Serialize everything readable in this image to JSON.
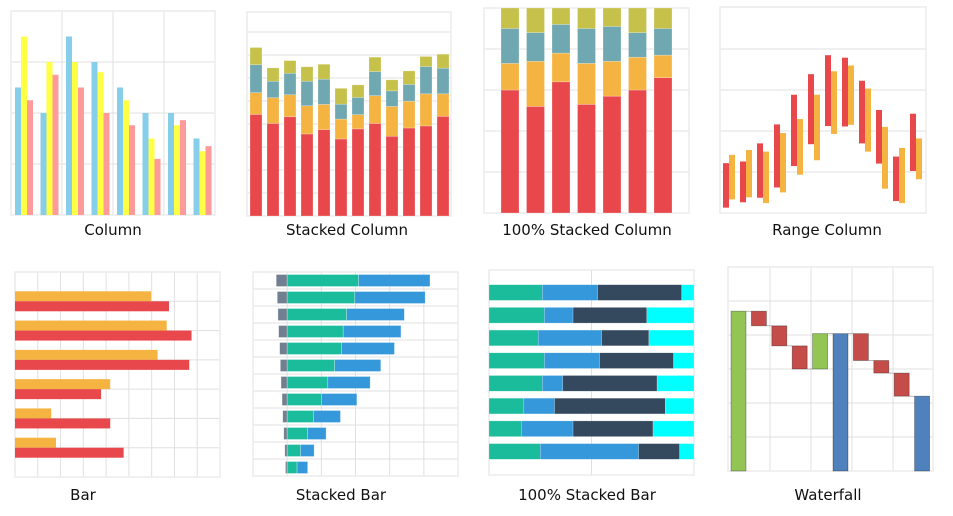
{
  "tiles": [
    {
      "label": "Column",
      "type": "column",
      "ylim": [
        0,
        4
      ],
      "series": [
        {
          "color": "#87ceeb",
          "values": [
            2.5,
            2.0,
            3.5,
            3.0,
            2.5,
            2.0,
            2.0,
            1.5
          ]
        },
        {
          "color": "#ffff44",
          "values": [
            3.5,
            3.0,
            3.0,
            2.8,
            2.25,
            1.5,
            1.76,
            1.25
          ]
        },
        {
          "color": "#ff9a9a",
          "values": [
            2.25,
            2.75,
            2.5,
            2.0,
            1.76,
            1.1,
            1.86,
            1.35
          ]
        }
      ]
    },
    {
      "label": "Stacked Column",
      "type": "stacked_column",
      "ylim": [
        0,
        8.9
      ],
      "series": [
        {
          "color": "#e8474b",
          "values": [
            4.43,
            4.04,
            4.33,
            3.58,
            3.77,
            3.36,
            3.8,
            4.04,
            3.48,
            3.84,
            3.93,
            4.35
          ]
        },
        {
          "color": "#f5b342",
          "values": [
            0.95,
            1.12,
            0.96,
            1.23,
            1.1,
            0.87,
            0.62,
            1.21,
            1.3,
            1.17,
            1.4,
            0.98
          ]
        },
        {
          "color": "#6fa8b0",
          "values": [
            1.22,
            0.72,
            0.94,
            1.07,
            1.1,
            0.65,
            0.75,
            1.05,
            0.68,
            0.73,
            1.19,
            1.12
          ]
        },
        {
          "color": "#c5c14a",
          "values": [
            0.75,
            0.58,
            0.55,
            0.63,
            0.65,
            0.69,
            0.55,
            0.63,
            0.48,
            0.59,
            0.44,
            0.61
          ]
        }
      ]
    },
    {
      "label": "100% Stacked Column",
      "type": "percent_column",
      "ylim": [
        0,
        100
      ],
      "series": [
        {
          "color": "#e8474b",
          "values": [
            60,
            52,
            64,
            53,
            57,
            60,
            66
          ]
        },
        {
          "color": "#f5b342",
          "values": [
            13,
            22,
            14,
            20,
            17,
            16,
            11
          ]
        },
        {
          "color": "#6fa8b0",
          "values": [
            17,
            14,
            14,
            17,
            17,
            12,
            13
          ]
        },
        {
          "color": "#c5c14a",
          "values": [
            10,
            12,
            8,
            10,
            9,
            12,
            10
          ]
        }
      ]
    },
    {
      "label": "Range Column",
      "type": "range_column",
      "ylim": [
        0,
        5
      ],
      "series": [
        {
          "color": "#e8474b",
          "low": [
            0.13,
            0.26,
            0.37,
            0.62,
            1.14,
            1.67,
            2.11,
            2.1,
            1.69,
            1.2,
            0.29,
            1.02
          ],
          "high": [
            1.21,
            1.25,
            1.69,
            2.15,
            2.87,
            3.37,
            3.83,
            3.77,
            3.21,
            2.5,
            1.37,
            2.41
          ]
        },
        {
          "color": "#f5b342",
          "low": [
            0.33,
            0.38,
            0.24,
            0.5,
            0.93,
            1.28,
            1.92,
            2.14,
            1.49,
            0.59,
            0.24,
            0.82
          ],
          "high": [
            1.41,
            1.53,
            1.49,
            1.94,
            2.28,
            2.87,
            3.44,
            3.58,
            3.02,
            2.09,
            1.58,
            1.81
          ]
        }
      ]
    },
    {
      "label": "Bar",
      "type": "bar",
      "xlim": [
        0,
        9
      ],
      "series": [
        {
          "color": "#f5b342",
          "values": [
            5.97,
            6.66,
            6.26,
            4.18,
            1.59,
            1.8
          ]
        },
        {
          "color": "#e8474b",
          "values": [
            6.76,
            7.75,
            7.65,
            3.78,
            4.18,
            4.77
          ]
        }
      ]
    },
    {
      "label": "Stacked Bar",
      "type": "stacked_bar",
      "xlim": [
        -1,
        5
      ],
      "series": [
        {
          "color": "#708090",
          "values": [
            -0.32,
            -0.29,
            -0.27,
            -0.25,
            -0.22,
            -0.2,
            -0.18,
            -0.15,
            -0.13,
            -0.1,
            -0.07,
            -0.05
          ]
        },
        {
          "color": "#1abc9c",
          "values": [
            2.09,
            1.98,
            1.74,
            1.64,
            1.59,
            1.39,
            1.19,
            1.0,
            0.77,
            0.6,
            0.39,
            0.29
          ]
        },
        {
          "color": "#3498db",
          "values": [
            2.09,
            2.06,
            1.69,
            1.69,
            1.55,
            1.35,
            1.24,
            1.04,
            0.79,
            0.54,
            0.4,
            0.31
          ]
        }
      ]
    },
    {
      "label": "100% Stacked Bar",
      "type": "percent_bar",
      "xlim": [
        0,
        100
      ],
      "series": [
        {
          "color": "#1abc9c",
          "values": [
            26,
            27,
            24,
            27,
            26,
            17,
            16,
            25
          ]
        },
        {
          "color": "#3498db",
          "values": [
            27,
            14,
            31,
            27,
            10,
            15,
            25,
            48
          ]
        },
        {
          "color": "#34495e",
          "values": [
            41,
            36,
            23,
            36,
            46,
            54,
            39,
            20
          ]
        },
        {
          "color": "#00ffff",
          "values": [
            6,
            23,
            22,
            10,
            18,
            14,
            20,
            7
          ]
        }
      ]
    },
    {
      "label": "Waterfall",
      "type": "waterfall",
      "ylim": [
        0,
        6
      ],
      "colors": {
        "increase": "#92c553",
        "decrease": "#c44d4a",
        "total": "#4f81bd"
      },
      "steps": [
        {
          "kind": "increase",
          "value": 4.7
        },
        {
          "kind": "decrease",
          "value": -0.43
        },
        {
          "kind": "decrease",
          "value": -0.59
        },
        {
          "kind": "decrease",
          "value": -0.68
        },
        {
          "kind": "increase",
          "value": 1.04
        },
        {
          "kind": "total",
          "value": 4.04
        },
        {
          "kind": "decrease",
          "value": -0.79
        },
        {
          "kind": "decrease",
          "value": -0.37
        },
        {
          "kind": "decrease",
          "value": -0.68
        },
        {
          "kind": "total",
          "value": 2.2
        }
      ]
    }
  ]
}
